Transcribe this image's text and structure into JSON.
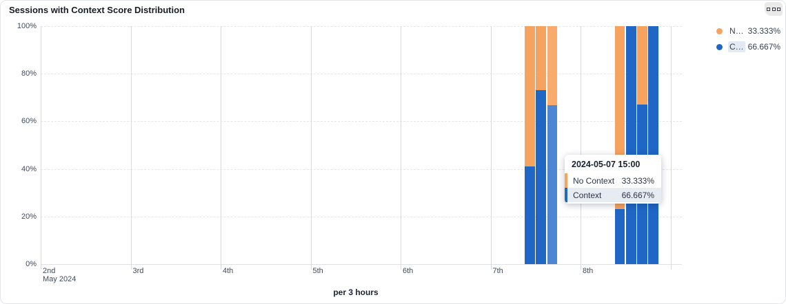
{
  "panel": {
    "title": "Sessions with Context Score Distribution"
  },
  "legend": {
    "items": [
      {
        "label": "N…",
        "value": "33.333%",
        "color": "#f6a35f",
        "highlighted": false
      },
      {
        "label": "C…",
        "value": "66.667%",
        "color": "#2066c4",
        "highlighted": true
      }
    ]
  },
  "tooltip": {
    "header": "2024-05-07 15:00",
    "rows": [
      {
        "label": "No Context",
        "value": "33.333%",
        "color": "#f6a35f",
        "highlighted": false
      },
      {
        "label": "Context",
        "value": "66.667%",
        "color": "#2066c4",
        "highlighted": true
      }
    ]
  },
  "chart_data": {
    "type": "bar",
    "stacked": true,
    "title": "Sessions with Context Score Distribution",
    "xlabel": "per 3 hours",
    "ylabel": "",
    "ylim": [
      0,
      100
    ],
    "grid": true,
    "legend_position": "top-right",
    "y_tick_values": [
      100,
      80,
      60,
      40,
      20,
      0
    ],
    "y_tick_labels": [
      "100%",
      "80%",
      "60%",
      "40%",
      "20%",
      "0%"
    ],
    "x_tick_labels": [
      "2nd",
      "3rd",
      "4th",
      "5th",
      "6th",
      "7th",
      "8th"
    ],
    "x_axis_secondary": "May 2024",
    "x_start_day": 2,
    "bucket_hours": 3,
    "series": [
      {
        "name": "Context",
        "color": "#2066c4",
        "hover_color": "#4f86d3"
      },
      {
        "name": "No Context",
        "color": "#f6a35f",
        "hover_color": "#f8ab6d"
      }
    ],
    "bars": [
      {
        "time": "2024-05-07 09:00",
        "context_pct": 41,
        "no_context_pct": 59,
        "hovered": false
      },
      {
        "time": "2024-05-07 12:00",
        "context_pct": 73,
        "no_context_pct": 27,
        "hovered": false
      },
      {
        "time": "2024-05-07 15:00",
        "context_pct": 66.667,
        "no_context_pct": 33.333,
        "hovered": true
      },
      {
        "time": "2024-05-08 09:00",
        "context_pct": 23,
        "no_context_pct": 77,
        "hovered": false
      },
      {
        "time": "2024-05-08 12:00",
        "context_pct": 100,
        "no_context_pct": 0,
        "hovered": false
      },
      {
        "time": "2024-05-08 15:00",
        "context_pct": 67,
        "no_context_pct": 33,
        "hovered": false
      },
      {
        "time": "2024-05-08 18:00",
        "context_pct": 100,
        "no_context_pct": 0,
        "hovered": false
      }
    ]
  }
}
